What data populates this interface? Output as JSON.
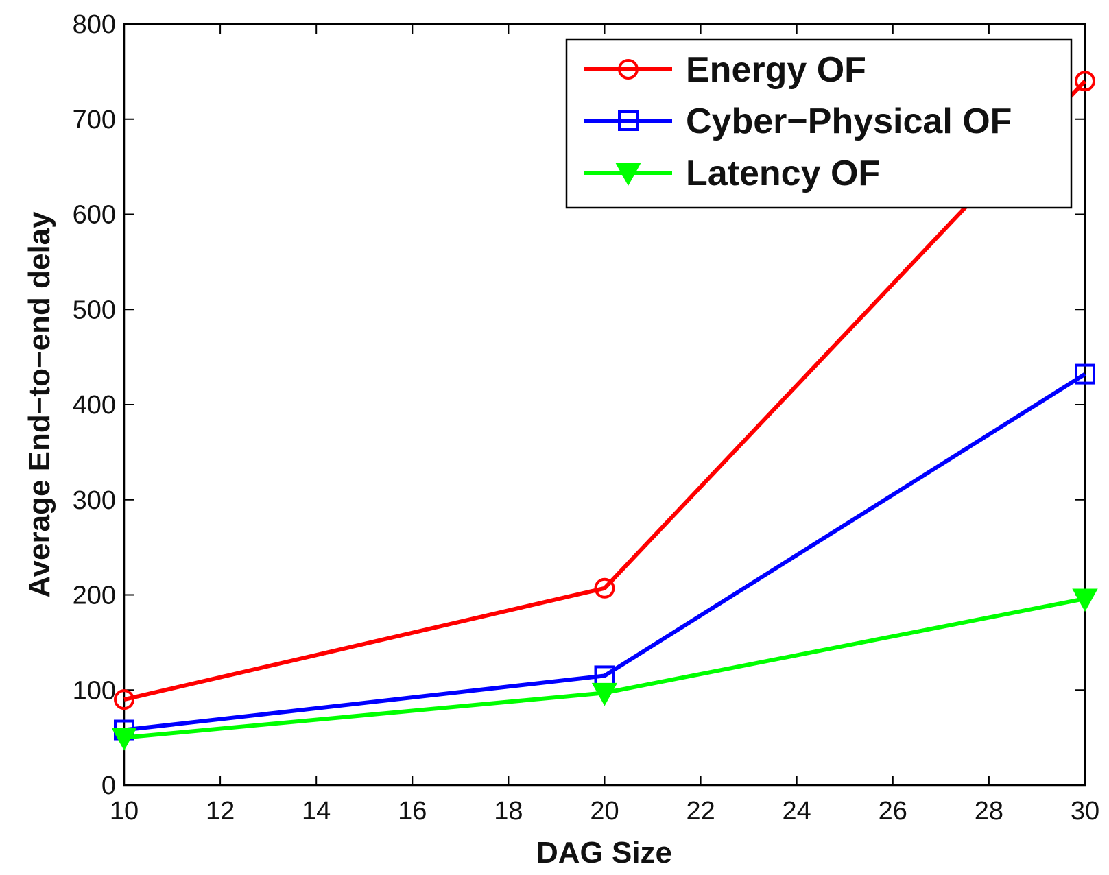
{
  "chart_data": {
    "type": "line",
    "title": "",
    "xlabel": "DAG Size",
    "ylabel": "Average End−to−end delay",
    "xlim": [
      10,
      30
    ],
    "ylim": [
      0,
      800
    ],
    "x_ticks": [
      10,
      12,
      14,
      16,
      18,
      20,
      22,
      24,
      26,
      28,
      30
    ],
    "y_ticks": [
      0,
      100,
      200,
      300,
      400,
      500,
      600,
      700,
      800
    ],
    "grid": false,
    "legend_position": "top-right",
    "x": [
      10,
      20,
      30
    ],
    "series": [
      {
        "name": "Energy OF",
        "color": "#ff0000",
        "marker": "circle",
        "values": [
          90,
          207,
          740
        ]
      },
      {
        "name": "Cyber−Physical OF",
        "color": "#0000ff",
        "marker": "square",
        "values": [
          58,
          115,
          432
        ]
      },
      {
        "name": "Latency OF",
        "color": "#00ff00",
        "marker": "triangle-down",
        "values": [
          50,
          97,
          196
        ]
      }
    ]
  }
}
